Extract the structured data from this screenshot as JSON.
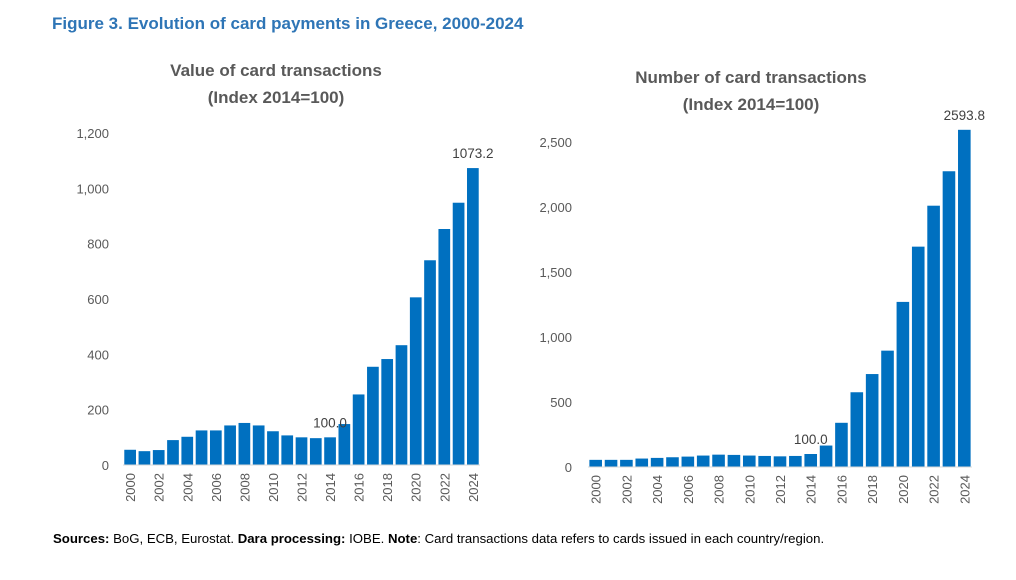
{
  "figure_title": "Figure 3. Evolution of card payments in Greece, 2000-2024",
  "source_note": {
    "sources_label": "Sources:",
    "sources_text": " BoG, ECB, Eurostat. ",
    "processing_label": "Dara processing:",
    "processing_text": " IOBE. ",
    "note_label": "Note",
    "note_text": ": Card transactions data refers to cards issued in each country/region."
  },
  "colors": {
    "bar": "#0070C0",
    "title": "#2E75B6",
    "text": "#595959"
  },
  "chart_data": [
    {
      "type": "bar",
      "title": [
        "Value of card transactions",
        "(Index 2014=100)"
      ],
      "xlabel": "",
      "ylabel": "",
      "categories": [
        "2000",
        "2001",
        "2002",
        "2003",
        "2004",
        "2005",
        "2006",
        "2007",
        "2008",
        "2009",
        "2010",
        "2011",
        "2012",
        "2013",
        "2014",
        "2015",
        "2016",
        "2017",
        "2018",
        "2019",
        "2020",
        "2021",
        "2022",
        "2023",
        "2024"
      ],
      "x_tick_labels": [
        "2000",
        "2002",
        "2004",
        "2006",
        "2008",
        "2010",
        "2012",
        "2014",
        "2016",
        "2018",
        "2020",
        "2022",
        "2024"
      ],
      "values": [
        55,
        50,
        54,
        90,
        102,
        125,
        125,
        143,
        152,
        143,
        122,
        107,
        100,
        97,
        100,
        148,
        255,
        355,
        383,
        433,
        606,
        740,
        853,
        948,
        1073.2
      ],
      "ylim": [
        0,
        1200
      ],
      "yticks": [
        0,
        200,
        400,
        600,
        800,
        1000,
        1200
      ],
      "ytick_labels": [
        "0",
        "200",
        "400",
        "600",
        "800",
        "1,000",
        "1,200"
      ],
      "annotations": [
        {
          "category": "2014",
          "text": "100.0"
        },
        {
          "category": "2024",
          "text": "1073.2"
        }
      ]
    },
    {
      "type": "bar",
      "title": [
        "Number of card transactions",
        "(Index 2014=100)"
      ],
      "xlabel": "",
      "ylabel": "",
      "categories": [
        "2000",
        "2001",
        "2002",
        "2003",
        "2004",
        "2005",
        "2006",
        "2007",
        "2008",
        "2009",
        "2010",
        "2011",
        "2012",
        "2013",
        "2014",
        "2015",
        "2016",
        "2017",
        "2018",
        "2019",
        "2020",
        "2021",
        "2022",
        "2023",
        "2024"
      ],
      "x_tick_labels": [
        "2000",
        "2002",
        "2004",
        "2006",
        "2008",
        "2010",
        "2012",
        "2014",
        "2016",
        "2018",
        "2020",
        "2022",
        "2024"
      ],
      "values": [
        55,
        55,
        55,
        65,
        70,
        75,
        80,
        88,
        95,
        93,
        88,
        85,
        82,
        85,
        100,
        165,
        340,
        575,
        715,
        895,
        1270,
        1695,
        2010,
        2275,
        2593.8
      ],
      "ylim": [
        0,
        2600
      ],
      "yticks": [
        0,
        500,
        1000,
        1500,
        2000,
        2500
      ],
      "ytick_labels": [
        "0",
        "500",
        "1,000",
        "1,500",
        "2,000",
        "2,500"
      ],
      "annotations": [
        {
          "category": "2014",
          "text": "100.0"
        },
        {
          "category": "2024",
          "text": "2593.8"
        }
      ]
    }
  ]
}
